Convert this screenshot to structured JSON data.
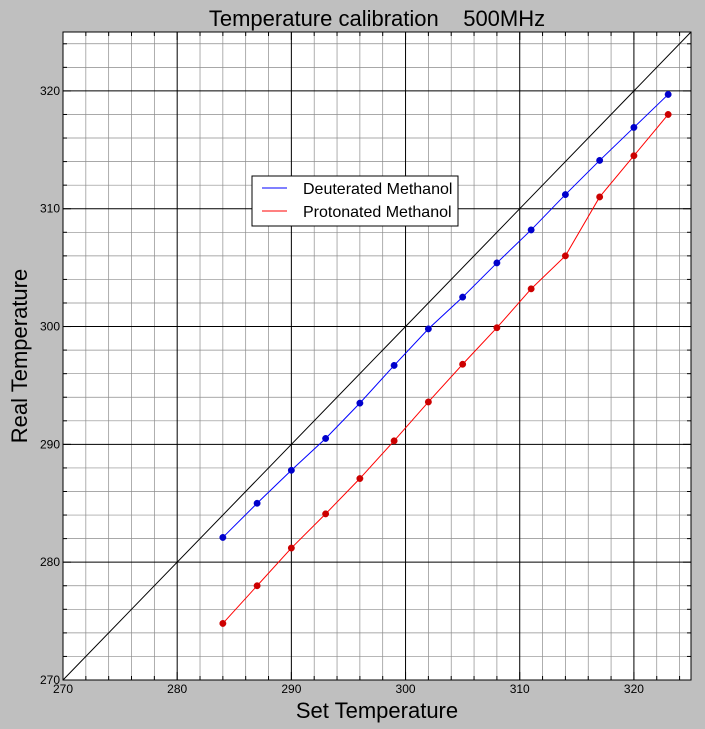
{
  "chart_data": {
    "type": "line",
    "title": "Temperature calibration    500MHz",
    "xlabel": "Set Temperature",
    "ylabel": "Real Temperature",
    "xlim": [
      270,
      325
    ],
    "ylim": [
      270,
      325
    ],
    "xticks": [
      "270",
      "280",
      "290",
      "300",
      "310",
      "320"
    ],
    "yticks": [
      "270",
      "280",
      "290",
      "300",
      "310",
      "320"
    ],
    "grid": true,
    "minor_grid": true,
    "legend_position": "upper-center",
    "reference_line": {
      "x": [
        270,
        325
      ],
      "y": [
        270,
        325
      ],
      "color": "#000000"
    },
    "series": [
      {
        "name": "Deuterated Methanol",
        "color": "#0000ff",
        "marker_color": "#0000cc",
        "x": [
          284,
          287,
          290,
          293,
          296,
          299,
          302,
          305,
          308,
          311,
          314,
          317,
          320,
          323
        ],
        "y": [
          282.1,
          285.0,
          287.8,
          290.5,
          293.5,
          296.7,
          299.8,
          302.5,
          305.4,
          308.2,
          311.2,
          314.1,
          316.9,
          319.7
        ]
      },
      {
        "name": "Protonated Methanol",
        "color": "#ff0000",
        "marker_color": "#cc0000",
        "x": [
          284,
          287,
          290,
          293,
          296,
          299,
          302,
          305,
          308,
          311,
          314,
          317,
          320,
          323
        ],
        "y": [
          274.8,
          278.0,
          281.2,
          284.1,
          287.1,
          290.3,
          293.6,
          296.8,
          299.9,
          303.2,
          306.0,
          311.0,
          314.5,
          318.0
        ]
      }
    ]
  }
}
